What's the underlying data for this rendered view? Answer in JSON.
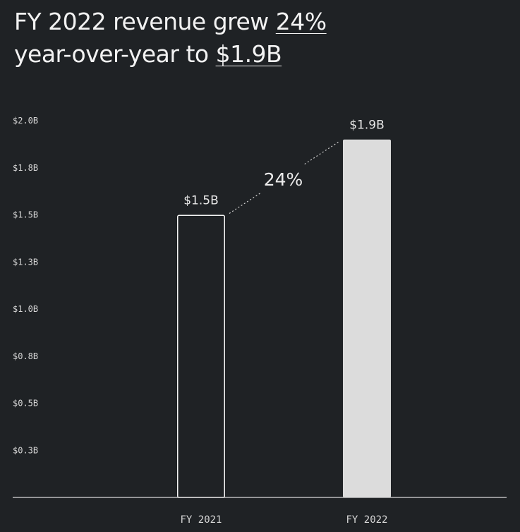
{
  "headline": {
    "line1_prefix": "FY 2022 revenue grew ",
    "line1_highlight": "24%",
    "line2_prefix": "year-over-year to ",
    "line2_highlight": "$1.9B"
  },
  "chart_data": {
    "type": "bar",
    "title": "",
    "xlabel": "",
    "ylabel": "",
    "categories": [
      "FY 2021",
      "FY 2022"
    ],
    "values": [
      1.5,
      1.9
    ],
    "value_labels": [
      "$1.5B",
      "$1.9B"
    ],
    "y_ticks": [
      {
        "value": 2.0,
        "label": "$2.0B"
      },
      {
        "value": 1.75,
        "label": "$1.8B"
      },
      {
        "value": 1.5,
        "label": "$1.5B"
      },
      {
        "value": 1.25,
        "label": "$1.3B"
      },
      {
        "value": 1.0,
        "label": "$1.0B"
      },
      {
        "value": 0.75,
        "label": "$0.8B"
      },
      {
        "value": 0.5,
        "label": "$0.5B"
      },
      {
        "value": 0.25,
        "label": "$0.3B"
      }
    ],
    "ylim": [
      0,
      2.0
    ],
    "grid": false,
    "growth_annotation": "24%",
    "colors": {
      "background": "#1f2225",
      "bar_2021_fill": "#1f2225",
      "bar_2021_stroke": "#f2f2f2",
      "bar_2022_fill": "#dcdcdc",
      "axis": "#d9d9d9",
      "text": "#e8e8e8"
    }
  }
}
